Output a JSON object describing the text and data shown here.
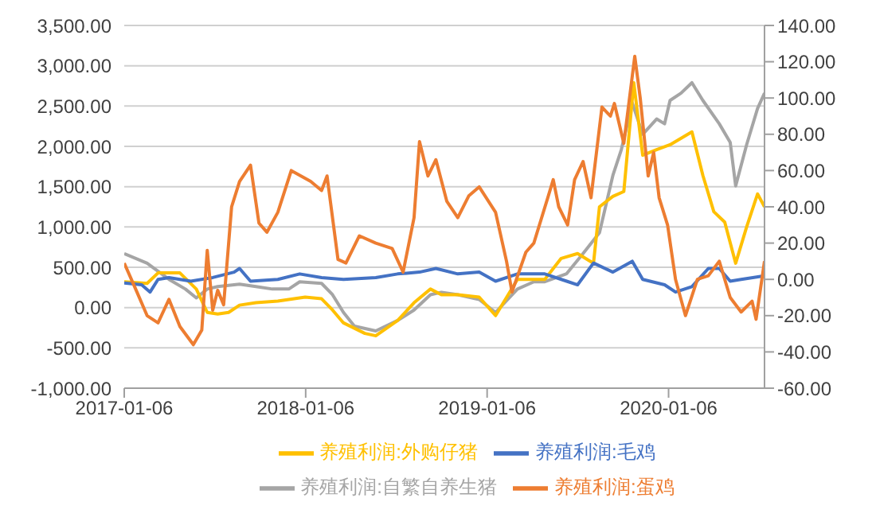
{
  "chart_data": {
    "type": "line",
    "xlim": [
      "2017-01-06",
      "2020-07-17"
    ],
    "xticks": [
      "2017-01-06",
      "2018-01-06",
      "2019-01-06",
      "2020-01-06"
    ],
    "ylim": [
      -1000,
      3500
    ],
    "yticks": [
      {
        "value": -1000,
        "label": "-1,000.00"
      },
      {
        "value": -500,
        "label": "-500.00"
      },
      {
        "value": 0,
        "label": "0.00"
      },
      {
        "value": 500,
        "label": "500.00"
      },
      {
        "value": 1000,
        "label": "1,000.00"
      },
      {
        "value": 1500,
        "label": "1,500.00"
      },
      {
        "value": 2000,
        "label": "2,000.00"
      },
      {
        "value": 2500,
        "label": "2,500.00"
      },
      {
        "value": 3000,
        "label": "3,000.00"
      },
      {
        "value": 3500,
        "label": "3,500.00"
      }
    ],
    "y2lim": [
      -60,
      140
    ],
    "y2ticks": [
      {
        "value": -60,
        "label": "-60.00"
      },
      {
        "value": -40,
        "label": "-40.00"
      },
      {
        "value": -20,
        "label": "-20.00"
      },
      {
        "value": 0,
        "label": "0.00"
      },
      {
        "value": 20,
        "label": "20.00"
      },
      {
        "value": 40,
        "label": "40.00"
      },
      {
        "value": 60,
        "label": "60.00"
      },
      {
        "value": 80,
        "label": "80.00"
      },
      {
        "value": 100,
        "label": "100.00"
      },
      {
        "value": 120,
        "label": "120.00"
      },
      {
        "value": 140,
        "label": "140.00"
      }
    ],
    "grid": "y",
    "legend": "bottom",
    "marker": "none",
    "line_style": "solid",
    "series": [
      {
        "name": "养殖利润:自繁自养生猪",
        "color": "#a5a5a5",
        "x": [
          "2017-01-06",
          "2017-02-21",
          "2017-04-06",
          "2017-05-09",
          "2017-05-31",
          "2017-06-22",
          "2017-07-13",
          "2017-08-26",
          "2017-09-28",
          "2017-10-31",
          "2017-12-03",
          "2017-12-25",
          "2018-02-07",
          "2018-03-01",
          "2018-03-23",
          "2018-04-14",
          "2018-05-27",
          "2018-07-10",
          "2018-08-12",
          "2018-09-14",
          "2018-10-06",
          "2018-11-08",
          "2018-12-21",
          "2019-01-23",
          "2019-03-08",
          "2019-04-10",
          "2019-05-02",
          "2019-06-15",
          "2019-07-18",
          "2019-08-20",
          "2019-09-16",
          "2019-10-03",
          "2019-10-25",
          "2019-11-15",
          "2019-12-13",
          "2019-12-29",
          "2020-01-09",
          "2020-01-31",
          "2020-02-22",
          "2020-03-15",
          "2020-04-17",
          "2020-05-09",
          "2020-05-20",
          "2020-06-11",
          "2020-07-03",
          "2020-07-17"
        ],
        "values": [
          670,
          550,
          350,
          230,
          120,
          230,
          260,
          290,
          260,
          230,
          230,
          320,
          300,
          160,
          -60,
          -230,
          -290,
          -160,
          -30,
          160,
          190,
          160,
          100,
          -60,
          230,
          320,
          320,
          420,
          670,
          930,
          1640,
          1960,
          2540,
          2150,
          2340,
          2280,
          2570,
          2660,
          2790,
          2570,
          2280,
          2050,
          1510,
          2020,
          2470,
          2660
        ]
      },
      {
        "name": "养殖利润:外购仔猪",
        "color": "#ffc000",
        "x": [
          "2017-01-06",
          "2017-02-21",
          "2017-03-15",
          "2017-04-28",
          "2017-05-31",
          "2017-06-22",
          "2017-07-13",
          "2017-08-04",
          "2017-08-26",
          "2017-09-28",
          "2017-11-11",
          "2017-12-03",
          "2018-01-05",
          "2018-02-07",
          "2018-03-01",
          "2018-03-23",
          "2018-05-05",
          "2018-05-27",
          "2018-07-10",
          "2018-08-12",
          "2018-09-14",
          "2018-10-06",
          "2018-11-08",
          "2018-12-21",
          "2019-01-23",
          "2019-03-08",
          "2019-05-02",
          "2019-06-04",
          "2019-07-07",
          "2019-08-08",
          "2019-08-20",
          "2019-09-16",
          "2019-10-08",
          "2019-10-28",
          "2019-11-15",
          "2019-12-13",
          "2020-01-09",
          "2020-02-22",
          "2020-03-15",
          "2020-04-06",
          "2020-04-28",
          "2020-05-20",
          "2020-06-11",
          "2020-07-03",
          "2020-07-17"
        ],
        "values": [
          320,
          300,
          430,
          430,
          230,
          -60,
          -80,
          -60,
          30,
          60,
          80,
          100,
          130,
          110,
          -30,
          -190,
          -320,
          -350,
          -160,
          60,
          230,
          160,
          160,
          130,
          -100,
          350,
          350,
          610,
          670,
          550,
          1250,
          1380,
          1440,
          2790,
          1890,
          1960,
          2020,
          2180,
          1640,
          1190,
          1060,
          550,
          1000,
          1410,
          1250
        ]
      },
      {
        "name": "养殖利润:毛鸡",
        "color": "#4472c4",
        "axis": "y2",
        "x": [
          "2017-01-06",
          "2017-02-10",
          "2017-02-27",
          "2017-03-15",
          "2017-04-06",
          "2017-05-20",
          "2017-07-03",
          "2017-08-15",
          "2017-08-26",
          "2017-09-17",
          "2017-11-11",
          "2017-12-25",
          "2018-02-07",
          "2018-03-23",
          "2018-05-27",
          "2018-07-10",
          "2018-08-23",
          "2018-09-25",
          "2018-11-08",
          "2018-12-21",
          "2019-01-23",
          "2019-03-08",
          "2019-05-02",
          "2019-06-15",
          "2019-07-07",
          "2019-08-08",
          "2019-09-16",
          "2019-10-25",
          "2019-11-15",
          "2019-12-29",
          "2020-01-20",
          "2020-02-22",
          "2020-03-26",
          "2020-04-17",
          "2020-05-09",
          "2020-05-31",
          "2020-07-17"
        ],
        "values": [
          -2,
          -3,
          -7,
          0,
          1,
          -1,
          1,
          4,
          6,
          -1,
          0,
          3,
          1,
          0,
          1,
          3,
          4,
          6,
          3,
          4,
          -1,
          3,
          3,
          -1,
          -3,
          9,
          4,
          10,
          0,
          -3,
          -7,
          -4,
          6,
          6,
          -1,
          0,
          2
        ]
      },
      {
        "name": "养殖利润:蛋鸡",
        "color": "#ed7d31",
        "axis": "y2",
        "x": [
          "2017-01-06",
          "2017-01-30",
          "2017-02-21",
          "2017-03-15",
          "2017-04-06",
          "2017-04-28",
          "2017-05-25",
          "2017-06-11",
          "2017-06-22",
          "2017-07-03",
          "2017-07-13",
          "2017-07-25",
          "2017-08-10",
          "2017-08-26",
          "2017-09-17",
          "2017-10-04",
          "2017-10-20",
          "2017-11-11",
          "2017-12-08",
          "2018-01-16",
          "2018-02-07",
          "2018-02-18",
          "2018-03-12",
          "2018-03-28",
          "2018-04-24",
          "2018-05-27",
          "2018-06-29",
          "2018-07-21",
          "2018-08-12",
          "2018-08-23",
          "2018-09-09",
          "2018-09-25",
          "2018-10-17",
          "2018-11-08",
          "2018-11-30",
          "2018-12-21",
          "2019-01-23",
          "2019-02-14",
          "2019-02-25",
          "2019-03-25",
          "2019-04-10",
          "2019-05-08",
          "2019-05-19",
          "2019-05-30",
          "2019-06-17",
          "2019-07-01",
          "2019-07-18",
          "2019-08-03",
          "2019-08-25",
          "2019-09-11",
          "2019-09-19",
          "2019-10-08",
          "2019-10-30",
          "2019-11-10",
          "2019-11-26",
          "2019-12-07",
          "2019-12-18",
          "2020-01-04",
          "2020-01-20",
          "2020-02-09",
          "2020-03-04",
          "2020-03-26",
          "2020-04-17",
          "2020-05-09",
          "2020-05-31",
          "2020-06-22",
          "2020-06-30",
          "2020-07-17"
        ],
        "values": [
          9,
          -6,
          -20,
          -24,
          -11,
          -26,
          -36,
          -28,
          16,
          -17,
          -6,
          -14,
          40,
          54,
          63,
          31,
          26,
          37,
          60,
          54,
          49,
          57,
          11,
          9,
          24,
          20,
          17,
          4,
          34,
          76,
          57,
          66,
          43,
          34,
          46,
          51,
          37,
          10,
          -7,
          15,
          20,
          45,
          55,
          40,
          30,
          55,
          65,
          45,
          95,
          90,
          97,
          75,
          123,
          100,
          57,
          70,
          45,
          30,
          0,
          -20,
          0,
          2,
          10,
          -10,
          -18,
          -12,
          -22,
          10
        ]
      }
    ]
  }
}
